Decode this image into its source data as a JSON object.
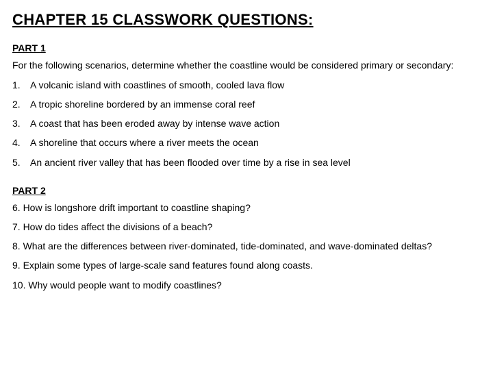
{
  "title": "CHAPTER 15 CLASSWORK QUESTIONS:",
  "part1": {
    "heading": "PART 1",
    "instructions": "For the following scenarios, determine whether the coastline would be considered primary or secondary:",
    "items": [
      {
        "num": "1.",
        "text": "A volcanic island with coastlines of smooth, cooled lava flow"
      },
      {
        "num": "2.",
        "text": "A tropic shoreline bordered by an immense coral reef"
      },
      {
        "num": "3.",
        "text": "A coast that has been eroded away by intense wave action"
      },
      {
        "num": "4.",
        "text": "A shoreline that occurs where a river meets the ocean"
      },
      {
        "num": "5.",
        "text": "An ancient river valley that has been flooded over time by a rise in sea level"
      }
    ]
  },
  "part2": {
    "heading": "PART 2",
    "items": [
      "6. How is longshore drift important to coastline shaping?",
      "7. How do tides affect the divisions of a beach?",
      "8. What are the differences between river-dominated, tide-dominated, and wave-dominated deltas?",
      "9. Explain some types of large-scale sand features found along coasts.",
      "10. Why would people want to modify coastlines?"
    ]
  },
  "colors": {
    "background": "#ffffff",
    "text": "#000000"
  },
  "typography": {
    "title_fontsize": 22,
    "heading_fontsize": 14,
    "body_fontsize": 14,
    "font_family": "Arial"
  }
}
